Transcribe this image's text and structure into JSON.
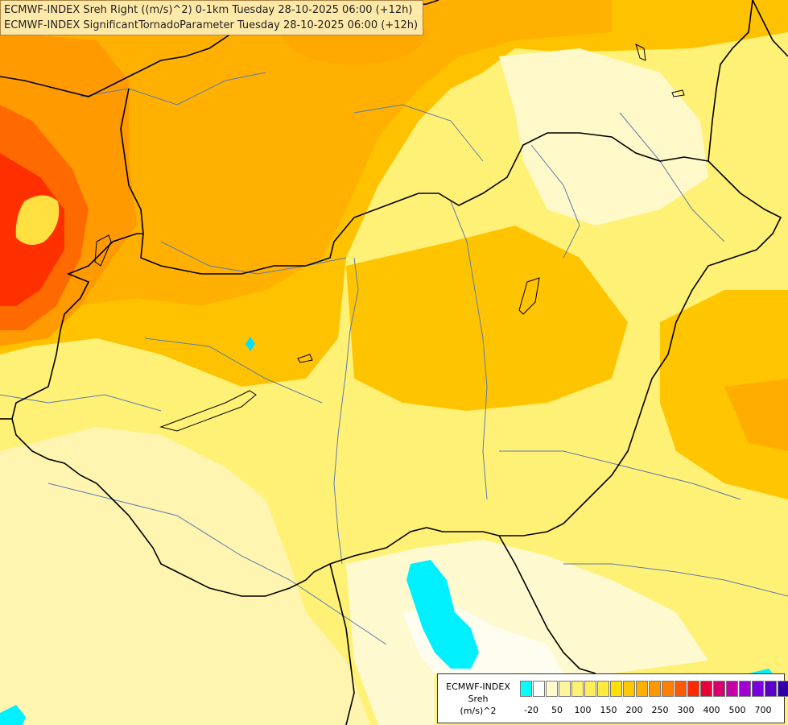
{
  "title": {
    "line1": "ECMWF-INDEX Sreh Right ((m/s)^2) 0-1km Tuesday 28-10-2025 06:00 (+12h)",
    "line2": "ECMWF-INDEX SignificantTornadoParameter Tuesday 28-10-2025 06:00 (+12h)"
  },
  "legend": {
    "line1": "ECMWF-INDEX",
    "line2": "Sreh",
    "line3": "(m/s)^2",
    "colors": [
      "#00ffff",
      "#ffffff",
      "#fffacd",
      "#fff59d",
      "#fff176",
      "#ffee58",
      "#ffeb3b",
      "#ffe000",
      "#ffc800",
      "#ffb000",
      "#ff9800",
      "#ff7f00",
      "#ff5a00",
      "#ff2a00",
      "#e6003a",
      "#d6006e",
      "#c800a8",
      "#a000d0",
      "#7a00e0",
      "#5a00c8",
      "#3000a8",
      "#000080"
    ],
    "ticks": [
      "-20",
      "50",
      "100",
      "150",
      "200",
      "250",
      "300",
      "400",
      "500",
      "700"
    ]
  }
}
